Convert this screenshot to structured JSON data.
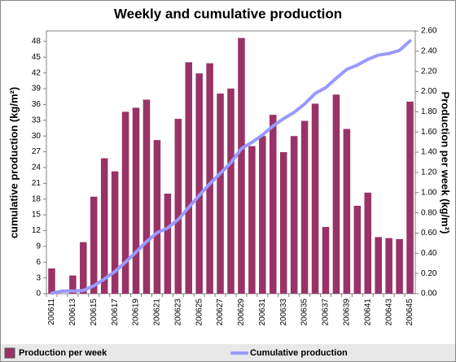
{
  "chart_data": {
    "type": "bar_line",
    "title": "Weekly and cumulative production",
    "y_label": "cumulative production (kg/m²)",
    "y2_label": "Production per week (kg/m²)",
    "categories": [
      "200611",
      null,
      "200613",
      null,
      "200615",
      null,
      "200617",
      null,
      "200619",
      null,
      "200621",
      null,
      "200623",
      null,
      "200625",
      null,
      "200627",
      null,
      "200629",
      null,
      "200631",
      null,
      "200633",
      null,
      "200635",
      null,
      "200637",
      null,
      "200639",
      null,
      "200641",
      null,
      "200643",
      null,
      "200645"
    ],
    "ylim": [
      0,
      50
    ],
    "yticks": [
      0,
      3,
      6,
      9,
      12,
      15,
      18,
      21,
      24,
      27,
      30,
      33,
      36,
      39,
      42,
      45,
      48
    ],
    "y2lim": [
      0,
      2.6
    ],
    "y2ticks": [
      {
        "value": 0,
        "label": "0.00"
      },
      {
        "value": 0.2,
        "label": "0.20"
      },
      {
        "value": 0.4,
        "label": "0.40"
      },
      {
        "value": 0.6,
        "label": "0.60"
      },
      {
        "value": 0.8,
        "label": "0.80"
      },
      {
        "value": 1,
        "label": "1.00"
      },
      {
        "value": 1.2,
        "label": "1.20"
      },
      {
        "value": 1.4,
        "label": "1.40"
      },
      {
        "value": 1.6,
        "label": "1.60"
      },
      {
        "value": 1.8,
        "label": "1.80"
      },
      {
        "value": 2,
        "label": "2.00"
      },
      {
        "value": 2.2,
        "label": "2.20"
      },
      {
        "value": 2.4,
        "label": "2.40"
      },
      {
        "value": 2.6,
        "label": "2.60"
      }
    ],
    "grid": false,
    "legend": "bottom",
    "series": [
      {
        "name": "Production per week",
        "type": "bar",
        "axis": "y2",
        "color": "#993366",
        "values": [
          0.25,
          0,
          0.18,
          0.51,
          0.96,
          1.34,
          1.21,
          1.8,
          1.84,
          1.92,
          1.52,
          0.99,
          1.73,
          2.29,
          2.18,
          2.28,
          1.98,
          2.03,
          2.53,
          1.46,
          1.56,
          1.77,
          1.4,
          1.56,
          1.71,
          1.88,
          0.66,
          1.97,
          1.63,
          0.87,
          1.0,
          0.56,
          0.55,
          0.54,
          1.9
        ]
      },
      {
        "name": "Cumulative production",
        "type": "line",
        "axis": "y",
        "color": "#9999ff",
        "values": [
          0.1,
          0.5,
          0.5,
          0.6,
          1.5,
          2.8,
          4.2,
          6.0,
          7.9,
          9.9,
          11.6,
          12.5,
          14.1,
          16.4,
          18.7,
          20.9,
          22.9,
          24.9,
          27.6,
          28.8,
          30.2,
          31.9,
          33.3,
          34.5,
          36.1,
          38.1,
          39.2,
          41.0,
          42.7,
          43.5,
          44.6,
          45.4,
          45.7,
          46.3,
          48.1
        ]
      }
    ]
  }
}
